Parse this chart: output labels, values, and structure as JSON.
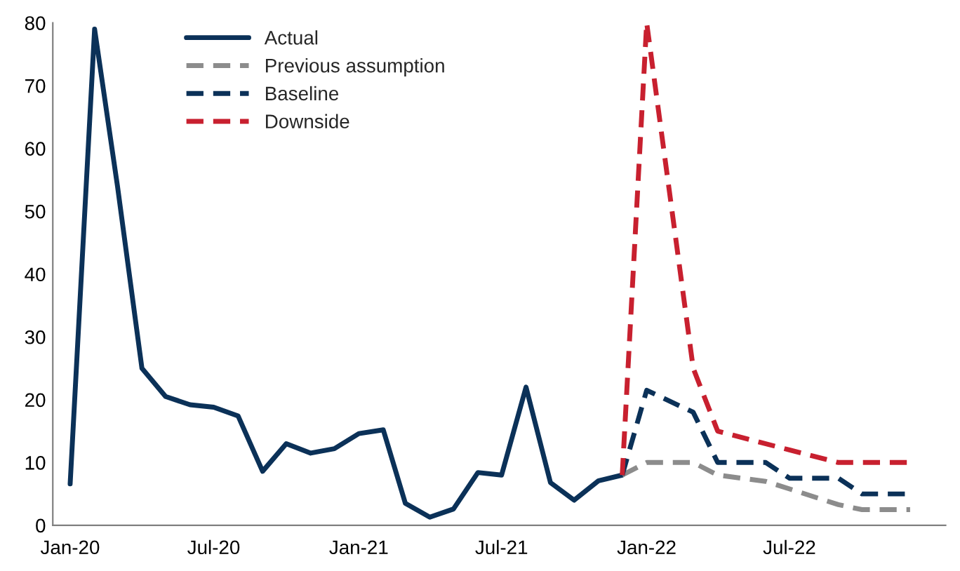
{
  "chart_data": {
    "type": "line",
    "series": [
      {
        "name": "Actual",
        "color": "#0b3158",
        "line_style": "solid",
        "x": [
          "2020-01",
          "2020-02",
          "2020-03",
          "2020-04",
          "2020-05",
          "2020-06",
          "2020-07",
          "2020-08",
          "2020-09",
          "2020-10",
          "2020-11",
          "2020-12",
          "2021-01",
          "2021-02",
          "2021-03",
          "2021-04",
          "2021-05",
          "2021-06",
          "2021-07",
          "2021-08",
          "2021-09",
          "2021-10",
          "2021-11",
          "2021-12"
        ],
        "values": [
          6.6,
          79,
          54,
          25,
          20.5,
          19.2,
          18.8,
          17.4,
          8.6,
          13,
          11.5,
          12.2,
          14.6,
          15.2,
          3.5,
          1.3,
          2.6,
          8.4,
          8,
          22,
          6.8,
          4,
          7.1,
          8
        ]
      },
      {
        "name": "Previous assumption",
        "color": "#8c8c8c",
        "line_style": "dashed",
        "x": [
          "2021-12",
          "2022-01",
          "2022-03",
          "2022-04",
          "2022-06",
          "2022-09",
          "2022-10",
          "2022-12"
        ],
        "values": [
          8,
          10,
          10,
          8,
          7,
          3.3,
          2.5,
          2.5
        ]
      },
      {
        "name": "Baseline",
        "color": "#0b3158",
        "line_style": "dashed",
        "x": [
          "2021-12",
          "2022-01",
          "2022-03",
          "2022-04",
          "2022-06",
          "2022-07",
          "2022-09",
          "2022-10",
          "2022-12"
        ],
        "values": [
          8,
          21.5,
          18,
          10,
          10,
          7.5,
          7.5,
          5,
          5
        ]
      },
      {
        "name": "Downside",
        "color": "#c8202f",
        "line_style": "dashed",
        "x": [
          "2021-12",
          "2022-01",
          "2022-03",
          "2022-04",
          "2022-07",
          "2022-09",
          "2022-12"
        ],
        "values": [
          8,
          80,
          25,
          15,
          12,
          10,
          10
        ]
      }
    ],
    "xlim": [
      "2019-12-10",
      "2023-01-15"
    ],
    "xticks": [
      {
        "value": "2020-01",
        "label": "Jan-20"
      },
      {
        "value": "2020-07",
        "label": "Jul-20"
      },
      {
        "value": "2021-01",
        "label": "Jan-21"
      },
      {
        "value": "2021-07",
        "label": "Jul-21"
      },
      {
        "value": "2022-01",
        "label": "Jan-22"
      },
      {
        "value": "2022-07",
        "label": "Jul-22"
      }
    ],
    "ylim": [
      0,
      80
    ],
    "yticks": [
      0,
      10,
      20,
      30,
      40,
      50,
      60,
      70,
      80
    ],
    "grid": false,
    "legend": "top left"
  }
}
